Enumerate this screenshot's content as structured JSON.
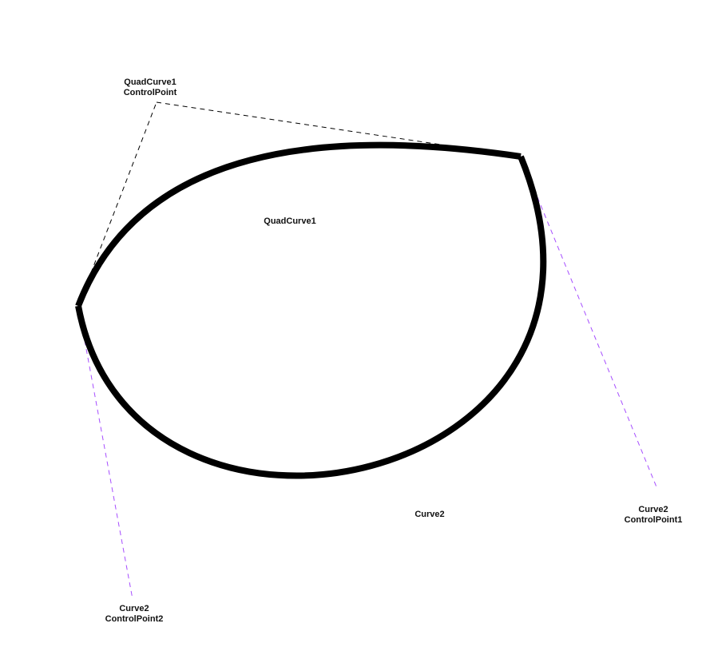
{
  "diagram": {
    "colors": {
      "path_stroke": "#000000",
      "quad_guide": "#000000",
      "cubic_guide": "#a64dff",
      "background": "#ffffff"
    },
    "labels": {
      "quad_curve": "QuadCurve1",
      "quad_control_line1": "QuadCurve1",
      "quad_control_line2": "ControlPoint",
      "cubic_curve": "Curve2",
      "cp1_line1": "Curve2",
      "cp1_line2": "ControlPoint1",
      "cp2_line1": "Curve2",
      "cp2_line2": "ControlPoint2"
    }
  }
}
